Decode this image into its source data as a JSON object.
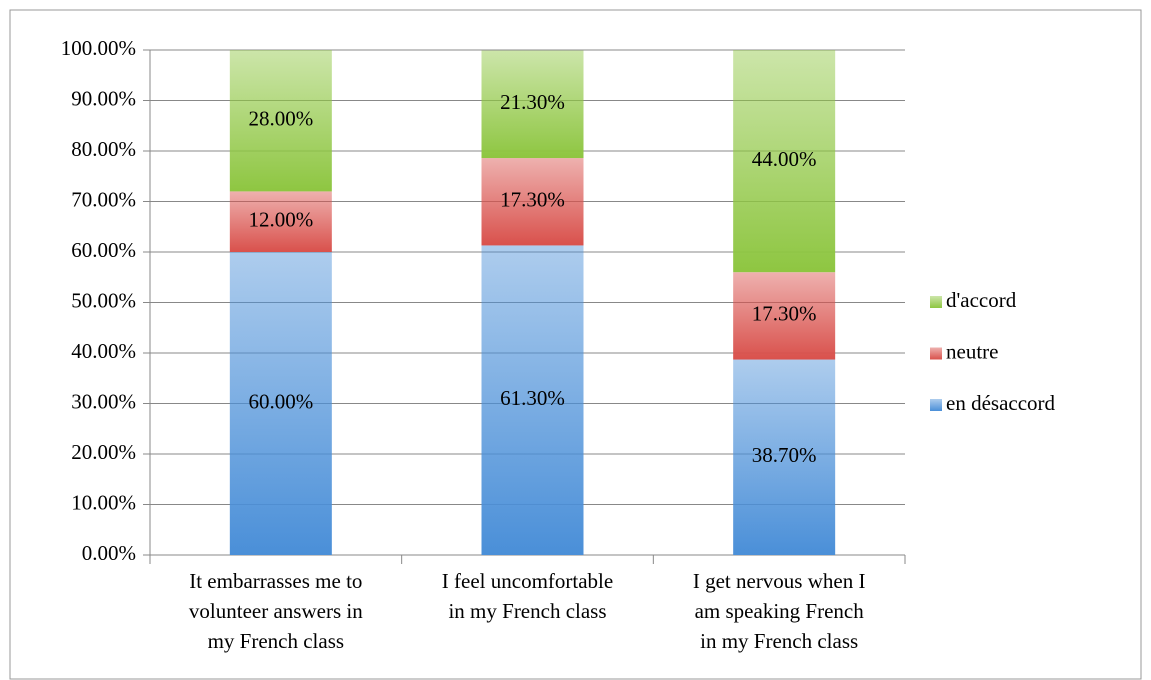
{
  "chart_data": {
    "type": "bar",
    "stacked": true,
    "categories": [
      "It embarrasses me to volunteer answers in my French class",
      "I feel uncomfortable in my French class",
      "I get nervous when I am speaking French in my French class"
    ],
    "series": [
      {
        "name": "en désaccord",
        "color": "#4a8fd8",
        "values": [
          60,
          61.3,
          38.7
        ],
        "value_labels": [
          "60.00%",
          "61.30%",
          "38.70%"
        ]
      },
      {
        "name": "neutre",
        "color": "#d9514c",
        "values": [
          12,
          17.3,
          17.3
        ],
        "value_labels": [
          "12.00%",
          "17.30%",
          "17.30%"
        ]
      },
      {
        "name": "d'accord",
        "color": "#8ec641",
        "values": [
          28,
          21.3,
          44
        ],
        "value_labels": [
          "28.00%",
          "21.30%",
          "44.00%"
        ]
      }
    ],
    "ylim": [
      0,
      100
    ],
    "yticks": [
      {
        "value": 0,
        "label": "0.00%"
      },
      {
        "value": 10,
        "label": "10.00%"
      },
      {
        "value": 20,
        "label": "20.00%"
      },
      {
        "value": 30,
        "label": "30.00%"
      },
      {
        "value": 40,
        "label": "40.00%"
      },
      {
        "value": 50,
        "label": "50.00%"
      },
      {
        "value": 60,
        "label": "60.00%"
      },
      {
        "value": 70,
        "label": "70.00%"
      },
      {
        "value": 80,
        "label": "80.00%"
      },
      {
        "value": 90,
        "label": "90.00%"
      },
      {
        "value": 100,
        "label": "100.00%"
      }
    ],
    "grid": true,
    "legend": "right"
  }
}
